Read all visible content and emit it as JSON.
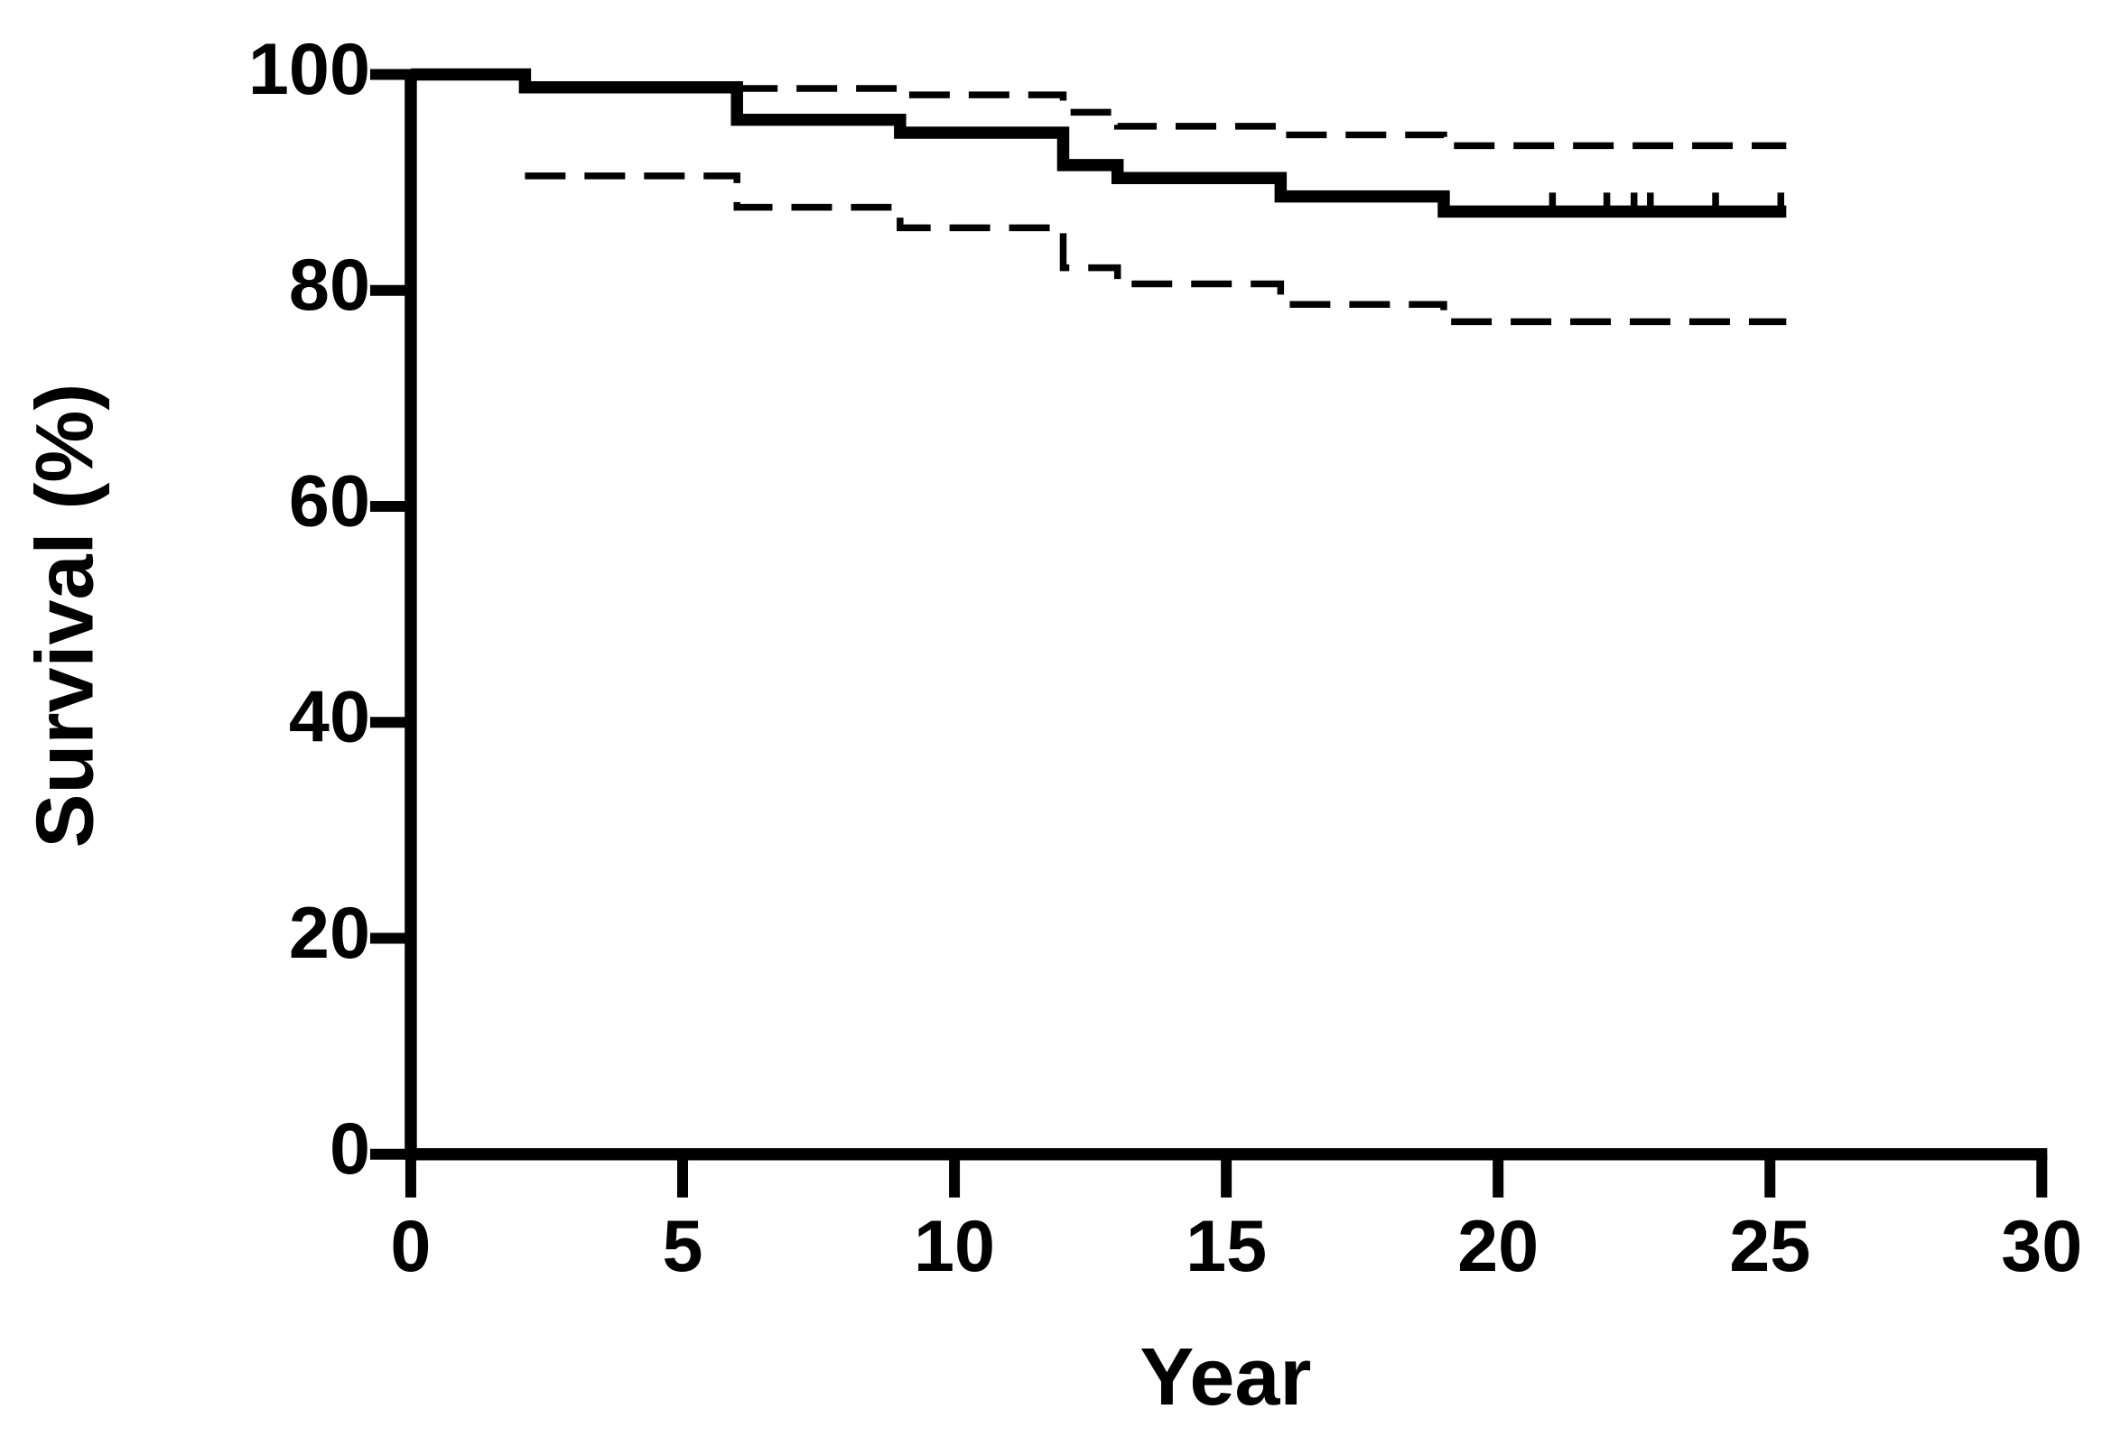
{
  "chart_data": {
    "type": "step",
    "xlabel": "Year",
    "ylabel": "Survival (%)",
    "xlim": [
      0,
      30
    ],
    "xticks": [
      0,
      5,
      10,
      15,
      20,
      25,
      30
    ],
    "ylim": [
      0,
      100
    ],
    "yticks": [
      0,
      20,
      40,
      60,
      80,
      100
    ],
    "series": [
      {
        "color": "#000000",
        "dash": false,
        "x": [
          0,
          2.1,
          6,
          9,
          12,
          13,
          16,
          19,
          25.3
        ],
        "values": [
          100,
          98.8,
          95.8,
          94.6,
          91.6,
          90.4,
          88.7,
          87.3,
          87.3
        ]
      },
      {
        "color": "#000000",
        "dash": true,
        "x": [
          6,
          9,
          12,
          13,
          16,
          19,
          25.3
        ],
        "values": [
          98.7,
          98.1,
          96.5,
          95.2,
          94.4,
          93.4,
          93.4
        ]
      },
      {
        "color": "#000000",
        "dash": true,
        "x": [
          2.1,
          6,
          9,
          12,
          13,
          16,
          19,
          25.3
        ],
        "values": [
          90.6,
          87.7,
          85.8,
          82.1,
          80.6,
          78.7,
          77.1,
          77.1
        ]
      }
    ],
    "censored": {
      "color": "#000000",
      "x": [
        21,
        22,
        22.5,
        22.8,
        24,
        25.2
      ],
      "values": [
        87.3,
        87.3,
        87.3,
        87.3,
        87.3,
        87.3
      ]
    }
  }
}
